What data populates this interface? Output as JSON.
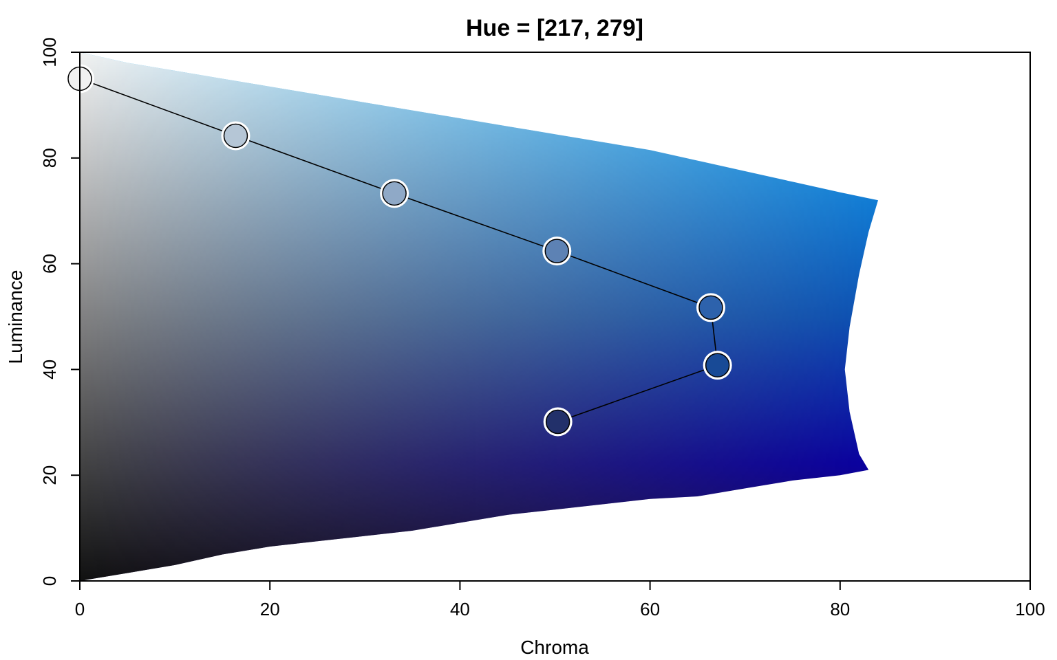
{
  "chart_data": {
    "type": "scatter",
    "title": "Hue = [217, 279]",
    "xlabel": "Chroma",
    "ylabel": "Luminance",
    "xlim": [
      0,
      100
    ],
    "ylim": [
      0,
      100
    ],
    "x_ticks": [
      0,
      20,
      40,
      60,
      80,
      100
    ],
    "y_ticks": [
      0,
      20,
      40,
      60,
      80,
      100
    ],
    "grid": false,
    "legend": "none",
    "hue_range": [
      217,
      279
    ],
    "colors": {
      "gray_top": "#f2f2f2",
      "gray_bottom": "#111111",
      "cyan_top": "#18b4ff",
      "blue_mid": "#0b50b3",
      "blue_bottom": "#0a00a0",
      "purple_dark": "#1e0c50",
      "line": "#000000",
      "marker_outline": "#ffffff"
    },
    "gamut_boundary": {
      "upper": [
        {
          "chroma": 0,
          "luminance": 100
        },
        {
          "chroma": 5,
          "luminance": 98
        },
        {
          "chroma": 10,
          "luminance": 96.5
        },
        {
          "chroma": 15,
          "luminance": 95
        },
        {
          "chroma": 20,
          "luminance": 93.5
        },
        {
          "chroma": 25,
          "luminance": 92
        },
        {
          "chroma": 30,
          "luminance": 90.5
        },
        {
          "chroma": 35,
          "luminance": 89
        },
        {
          "chroma": 40,
          "luminance": 87.5
        },
        {
          "chroma": 45,
          "luminance": 86
        },
        {
          "chroma": 50,
          "luminance": 84.5
        },
        {
          "chroma": 55,
          "luminance": 83
        },
        {
          "chroma": 60,
          "luminance": 81.5
        },
        {
          "chroma": 65,
          "luminance": 79.5
        },
        {
          "chroma": 70,
          "luminance": 77.5
        },
        {
          "chroma": 75,
          "luminance": 75.5
        },
        {
          "chroma": 80,
          "luminance": 73.5
        },
        {
          "chroma": 84,
          "luminance": 72
        }
      ],
      "right": [
        {
          "chroma": 84,
          "luminance": 72
        },
        {
          "chroma": 83,
          "luminance": 66
        },
        {
          "chroma": 82,
          "luminance": 58
        },
        {
          "chroma": 81,
          "luminance": 48
        },
        {
          "chroma": 80.5,
          "luminance": 40
        },
        {
          "chroma": 81,
          "luminance": 32
        },
        {
          "chroma": 82,
          "luminance": 24
        },
        {
          "chroma": 83,
          "luminance": 21
        }
      ],
      "lower": [
        {
          "chroma": 83,
          "luminance": 21
        },
        {
          "chroma": 80,
          "luminance": 20
        },
        {
          "chroma": 75,
          "luminance": 19
        },
        {
          "chroma": 70,
          "luminance": 17.5
        },
        {
          "chroma": 65,
          "luminance": 16
        },
        {
          "chroma": 60,
          "luminance": 15.5
        },
        {
          "chroma": 55,
          "luminance": 14.5
        },
        {
          "chroma": 50,
          "luminance": 13.5
        },
        {
          "chroma": 45,
          "luminance": 12.5
        },
        {
          "chroma": 40,
          "luminance": 11
        },
        {
          "chroma": 35,
          "luminance": 9.5
        },
        {
          "chroma": 30,
          "luminance": 8.5
        },
        {
          "chroma": 25,
          "luminance": 7.5
        },
        {
          "chroma": 20,
          "luminance": 6.5
        },
        {
          "chroma": 15,
          "luminance": 5
        },
        {
          "chroma": 10,
          "luminance": 3
        },
        {
          "chroma": 5,
          "luminance": 1.5
        },
        {
          "chroma": 0,
          "luminance": 0
        }
      ]
    },
    "series": [
      {
        "points": [
          {
            "x": 0,
            "y": 95,
            "color": "#f1f1f1"
          },
          {
            "x": 16.4,
            "y": 84.2,
            "color": "#b5c6d6"
          },
          {
            "x": 33.1,
            "y": 73.3,
            "color": "#8fa9c7"
          },
          {
            "x": 50.2,
            "y": 62.4,
            "color": "#5d82b4"
          },
          {
            "x": 66.4,
            "y": 51.7,
            "color": "#2d62ac"
          },
          {
            "x": 67.1,
            "y": 40.8,
            "color": "#184a96"
          },
          {
            "x": 50.3,
            "y": 30.1,
            "color": "#22306a"
          }
        ]
      }
    ]
  }
}
